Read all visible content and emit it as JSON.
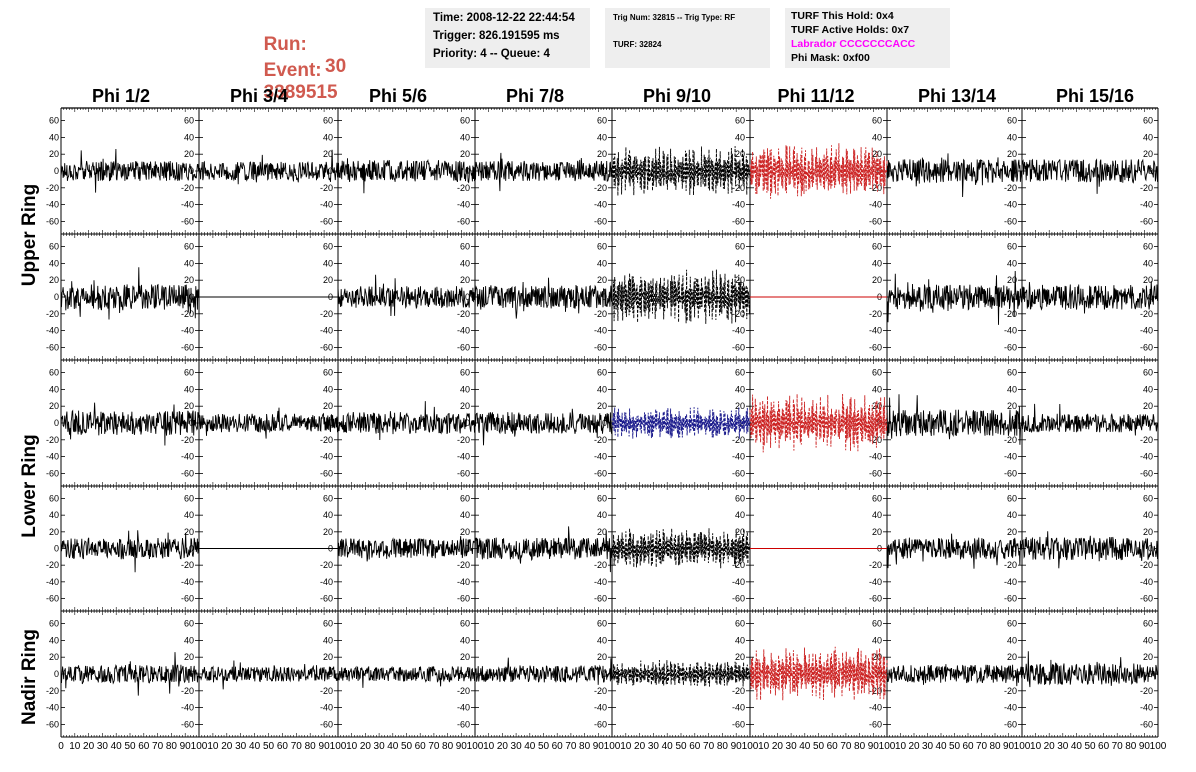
{
  "header": {
    "run_label": "Run:",
    "run_value": "30",
    "event_label": "Event:",
    "event_value": "3389515",
    "time": "Time: 2008-12-22 22:44:54",
    "trigger": "Trigger: 826.191595 ms",
    "priority": "Priority: 4 -- Queue: 4",
    "trig_num": "Trig Num: 32815 -- Trig Type: RF",
    "turf": "TURF: 32824",
    "turf_this_hold": "TURF This Hold: 0x4",
    "turf_active_holds": "TURF Active Holds: 0x7",
    "labrador": "Labrador CCCCCCCACC",
    "phi_mask": "Phi Mask: 0xf00"
  },
  "columns": [
    "Phi 1/2",
    "Phi 3/4",
    "Phi 5/6",
    "Phi 7/8",
    "Phi 9/10",
    "Phi 11/12",
    "Phi 13/14",
    "Phi 15/16"
  ],
  "rows": [
    "Upper Ring",
    "Lower Ring",
    "Nadir Ring"
  ],
  "colors": {
    "label_red": "#d05a4f",
    "labrador_magenta": "#ff00ff",
    "trace_black": "#000000",
    "trace_red": "#cc2222",
    "trace_blue": "#1a1a8c",
    "flat_red": "#cc0000"
  },
  "chart_data": {
    "type": "line",
    "xlim": [
      0,
      100
    ],
    "ylim": [
      -75,
      75
    ],
    "x_ticks": [
      0,
      10,
      20,
      30,
      40,
      50,
      60,
      70,
      80,
      90,
      100
    ],
    "x_tick_labels": [
      "0",
      "10",
      "20",
      "30",
      "40",
      "50",
      "60",
      "70",
      "80",
      "90",
      "100"
    ],
    "y_ticks": [
      -60,
      -40,
      -20,
      0,
      20,
      40,
      60
    ],
    "y_tick_labels": [
      "-60",
      "-40",
      "-20",
      "0",
      "20",
      "40",
      "60"
    ],
    "sample_count": 260,
    "panels": [
      {
        "id": "r1c1",
        "amp": 12,
        "style": "solid",
        "color": "trace_black"
      },
      {
        "id": "r1c2",
        "amp": 11,
        "style": "solid",
        "color": "trace_black"
      },
      {
        "id": "r1c3",
        "amp": 13,
        "style": "solid",
        "color": "trace_black"
      },
      {
        "id": "r1c4",
        "amp": 12,
        "style": "solid",
        "color": "trace_black"
      },
      {
        "id": "r1c5",
        "amp": 22,
        "style": "dashed",
        "color": "trace_black"
      },
      {
        "id": "r1c6",
        "amp": 24,
        "style": "dashed",
        "color": "trace_red"
      },
      {
        "id": "r1c7",
        "amp": 14,
        "style": "solid",
        "color": "trace_black"
      },
      {
        "id": "r1c8",
        "amp": 14,
        "style": "solid",
        "color": "trace_black"
      },
      {
        "id": "r2c1",
        "amp": 15,
        "style": "solid",
        "color": "trace_black"
      },
      {
        "id": "r2c2",
        "amp": 0,
        "style": "flat",
        "color": "trace_black"
      },
      {
        "id": "r2c3",
        "amp": 13,
        "style": "solid",
        "color": "trace_black"
      },
      {
        "id": "r2c4",
        "amp": 14,
        "style": "solid",
        "color": "trace_black"
      },
      {
        "id": "r2c5",
        "amp": 24,
        "style": "dashed",
        "color": "trace_black"
      },
      {
        "id": "r2c6",
        "amp": 0,
        "style": "flat",
        "color": "flat_red"
      },
      {
        "id": "r2c7",
        "amp": 15,
        "style": "solid",
        "color": "trace_black"
      },
      {
        "id": "r2c8",
        "amp": 15,
        "style": "solid",
        "color": "trace_black"
      },
      {
        "id": "r3c1",
        "amp": 15,
        "style": "solid",
        "color": "trace_black"
      },
      {
        "id": "r3c2",
        "amp": 11,
        "style": "solid",
        "color": "trace_black"
      },
      {
        "id": "r3c3",
        "amp": 13,
        "style": "solid",
        "color": "trace_black"
      },
      {
        "id": "r3c4",
        "amp": 13,
        "style": "solid",
        "color": "trace_black"
      },
      {
        "id": "r3c5",
        "amp": 14,
        "style": "dashed",
        "color": "trace_blue"
      },
      {
        "id": "r3c6",
        "amp": 25,
        "style": "dashed",
        "color": "trace_red"
      },
      {
        "id": "r3c7",
        "amp": 16,
        "style": "solid",
        "color": "trace_black"
      },
      {
        "id": "r3c8",
        "amp": 11,
        "style": "solid",
        "color": "trace_black"
      },
      {
        "id": "r4c1",
        "amp": 13,
        "style": "solid",
        "color": "trace_black"
      },
      {
        "id": "r4c2",
        "amp": 0,
        "style": "flat",
        "color": "trace_black"
      },
      {
        "id": "r4c3",
        "amp": 12,
        "style": "solid",
        "color": "trace_black"
      },
      {
        "id": "r4c4",
        "amp": 13,
        "style": "solid",
        "color": "trace_black"
      },
      {
        "id": "r4c5",
        "amp": 18,
        "style": "dashed",
        "color": "trace_black"
      },
      {
        "id": "r4c6",
        "amp": 0,
        "style": "flat",
        "color": "flat_red"
      },
      {
        "id": "r4c7",
        "amp": 13,
        "style": "solid",
        "color": "trace_black"
      },
      {
        "id": "r4c8",
        "amp": 14,
        "style": "solid",
        "color": "trace_black"
      },
      {
        "id": "r5c1",
        "amp": 11,
        "style": "solid",
        "color": "trace_black"
      },
      {
        "id": "r5c2",
        "amp": 9,
        "style": "solid",
        "color": "trace_black"
      },
      {
        "id": "r5c3",
        "amp": 9,
        "style": "solid",
        "color": "trace_black"
      },
      {
        "id": "r5c4",
        "amp": 10,
        "style": "solid",
        "color": "trace_black"
      },
      {
        "id": "r5c5",
        "amp": 12,
        "style": "dashed",
        "color": "trace_black"
      },
      {
        "id": "r5c6",
        "amp": 24,
        "style": "dashed",
        "color": "trace_red"
      },
      {
        "id": "r5c7",
        "amp": 11,
        "style": "solid",
        "color": "trace_black"
      },
      {
        "id": "r5c8",
        "amp": 13,
        "style": "solid",
        "color": "trace_black"
      }
    ]
  }
}
